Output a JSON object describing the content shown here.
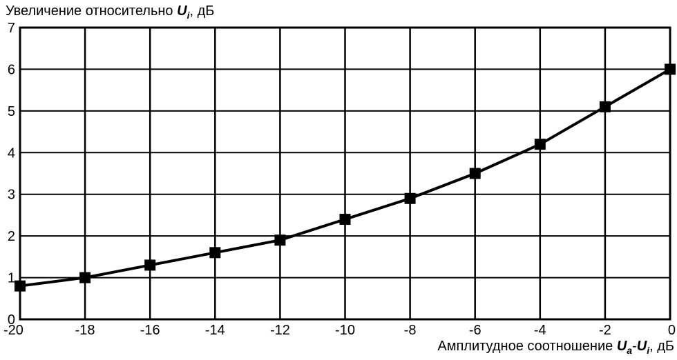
{
  "chart_data": {
    "type": "line",
    "ylabel": {
      "prefix": "Увеличение относительно ",
      "var": "U",
      "var_sub": "i",
      "suffix": ", дБ"
    },
    "xlabel": {
      "prefix": "Амплитудное соотношение ",
      "var1": "U",
      "var1_sub": "a",
      "dash": "-",
      "var2": "U",
      "var2_sub": "i",
      "suffix": ", дБ"
    },
    "xlim": [
      -20,
      0
    ],
    "ylim": [
      0,
      7
    ],
    "xticks": [
      -20,
      -18,
      -16,
      -14,
      -12,
      -10,
      -8,
      -6,
      -4,
      -2,
      0
    ],
    "yticks": [
      0,
      1,
      2,
      3,
      4,
      5,
      6,
      7
    ],
    "grid": true,
    "series": [
      {
        "x": [
          -20,
          -18,
          -16,
          -14,
          -12,
          -10,
          -8,
          -6,
          -4,
          -2,
          0
        ],
        "y": [
          0.8,
          1.0,
          1.3,
          1.6,
          1.9,
          2.4,
          2.9,
          3.5,
          4.2,
          5.1,
          6.0
        ],
        "color": "#000000",
        "marker": "square"
      }
    ]
  }
}
